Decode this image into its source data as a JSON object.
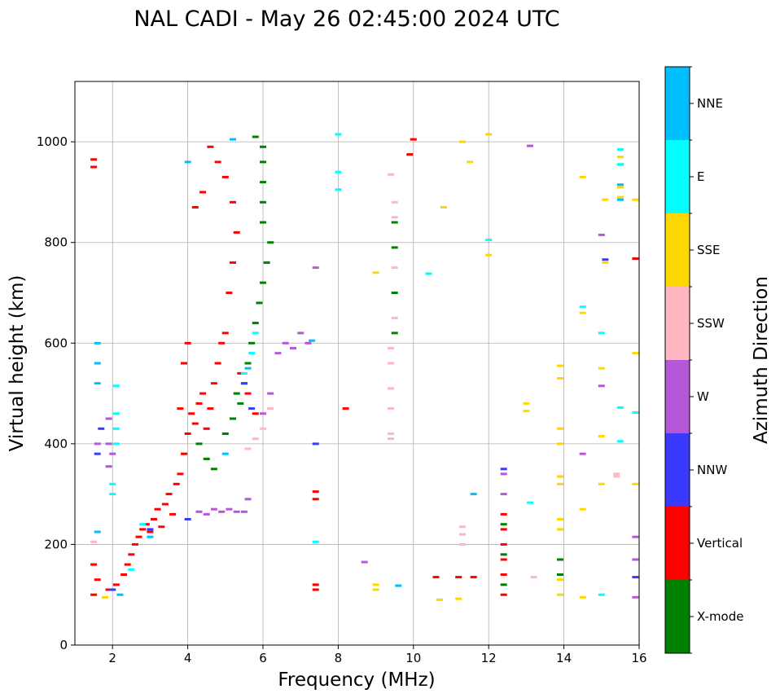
{
  "chart_data": {
    "type": "scatter",
    "title": "NAL CADI - May 26 02:45:00 2024 UTC",
    "xlabel": "Frequency (MHz)",
    "ylabel": "Virtual height (km)",
    "xlim": [
      1,
      16
    ],
    "ylim": [
      0,
      1120
    ],
    "grid": true,
    "x_ticks": [
      2,
      4,
      6,
      8,
      10,
      12,
      14,
      16
    ],
    "y_ticks": [
      0,
      200,
      400,
      600,
      800,
      1000
    ],
    "colorbar": {
      "label": "Azimuth Direction",
      "categories": [
        {
          "name": "X-mode",
          "color": "#008000"
        },
        {
          "name": "Vertical",
          "color": "#ff0000"
        },
        {
          "name": "NNW",
          "color": "#3a3aff"
        },
        {
          "name": "W",
          "color": "#b657d8"
        },
        {
          "name": "SSW",
          "color": "#ffb6c1"
        },
        {
          "name": "SSE",
          "color": "#ffd700"
        },
        {
          "name": "E",
          "color": "#00ffff"
        },
        {
          "name": "NNE",
          "color": "#00bfff"
        }
      ]
    },
    "series": [
      {
        "name": "Vertical",
        "color": "#ff0000",
        "points": [
          [
            1.5,
            100
          ],
          [
            1.6,
            130
          ],
          [
            1.5,
            160
          ],
          [
            1.5,
            950
          ],
          [
            1.5,
            965
          ],
          [
            1.9,
            110
          ],
          [
            2.1,
            120
          ],
          [
            2.3,
            140
          ],
          [
            2.4,
            160
          ],
          [
            2.5,
            180
          ],
          [
            2.6,
            200
          ],
          [
            2.7,
            215
          ],
          [
            2.8,
            230
          ],
          [
            2.9,
            240
          ],
          [
            3.0,
            225
          ],
          [
            3.1,
            250
          ],
          [
            3.2,
            270
          ],
          [
            3.3,
            235
          ],
          [
            3.4,
            280
          ],
          [
            3.5,
            300
          ],
          [
            3.6,
            260
          ],
          [
            3.7,
            320
          ],
          [
            3.8,
            340
          ],
          [
            3.9,
            380
          ],
          [
            4.0,
            420
          ],
          [
            4.1,
            460
          ],
          [
            4.2,
            440
          ],
          [
            4.3,
            480
          ],
          [
            4.4,
            500
          ],
          [
            4.5,
            430
          ],
          [
            4.6,
            470
          ],
          [
            4.7,
            520
          ],
          [
            4.8,
            560
          ],
          [
            4.9,
            600
          ],
          [
            5.0,
            620
          ],
          [
            5.1,
            700
          ],
          [
            5.2,
            760
          ],
          [
            5.3,
            820
          ],
          [
            5.2,
            880
          ],
          [
            5.0,
            930
          ],
          [
            4.8,
            960
          ],
          [
            4.6,
            990
          ],
          [
            4.4,
            900
          ],
          [
            4.2,
            870
          ],
          [
            4.0,
            600
          ],
          [
            3.9,
            560
          ],
          [
            3.8,
            470
          ],
          [
            5.4,
            540
          ],
          [
            5.6,
            500
          ],
          [
            5.8,
            460
          ],
          [
            7.4,
            110
          ],
          [
            7.4,
            120
          ],
          [
            7.4,
            290
          ],
          [
            7.4,
            305
          ],
          [
            8.2,
            470
          ],
          [
            9.9,
            975
          ],
          [
            10.0,
            1005
          ],
          [
            10.6,
            135
          ],
          [
            11.2,
            135
          ],
          [
            11.6,
            135
          ],
          [
            12.4,
            100
          ],
          [
            12.4,
            140
          ],
          [
            12.4,
            170
          ],
          [
            12.4,
            200
          ],
          [
            12.4,
            230
          ],
          [
            12.4,
            260
          ],
          [
            15.9,
            768
          ]
        ]
      },
      {
        "name": "X-mode",
        "color": "#008000",
        "points": [
          [
            4.3,
            400
          ],
          [
            4.5,
            370
          ],
          [
            4.7,
            350
          ],
          [
            5.0,
            420
          ],
          [
            5.2,
            450
          ],
          [
            5.4,
            480
          ],
          [
            5.5,
            520
          ],
          [
            5.6,
            560
          ],
          [
            5.7,
            600
          ],
          [
            5.8,
            640
          ],
          [
            5.9,
            680
          ],
          [
            6.0,
            720
          ],
          [
            6.1,
            760
          ],
          [
            6.2,
            800
          ],
          [
            6.0,
            840
          ],
          [
            6.0,
            880
          ],
          [
            6.0,
            920
          ],
          [
            6.0,
            960
          ],
          [
            6.0,
            990
          ],
          [
            5.8,
            1010
          ],
          [
            5.3,
            500
          ],
          [
            9.5,
            620
          ],
          [
            9.5,
            700
          ],
          [
            9.5,
            790
          ],
          [
            9.5,
            840
          ],
          [
            12.4,
            120
          ],
          [
            12.4,
            180
          ],
          [
            12.4,
            240
          ],
          [
            13.9,
            140
          ],
          [
            13.9,
            170
          ],
          [
            15.5,
            955
          ]
        ]
      },
      {
        "name": "NNW",
        "color": "#3a3aff",
        "points": [
          [
            1.6,
            380
          ],
          [
            1.7,
            430
          ],
          [
            2.0,
            110
          ],
          [
            3.0,
            230
          ],
          [
            4.0,
            250
          ],
          [
            5.5,
            520
          ],
          [
            5.7,
            470
          ],
          [
            7.4,
            400
          ],
          [
            12.4,
            350
          ],
          [
            15.1,
            766
          ],
          [
            15.9,
            135
          ]
        ]
      },
      {
        "name": "W",
        "color": "#b657d8",
        "points": [
          [
            1.6,
            400
          ],
          [
            1.9,
            355
          ],
          [
            1.9,
            400
          ],
          [
            1.9,
            450
          ],
          [
            2.0,
            380
          ],
          [
            4.3,
            265
          ],
          [
            4.5,
            260
          ],
          [
            4.7,
            270
          ],
          [
            4.9,
            265
          ],
          [
            5.1,
            270
          ],
          [
            5.3,
            265
          ],
          [
            5.5,
            265
          ],
          [
            5.6,
            290
          ],
          [
            6.0,
            460
          ],
          [
            6.2,
            500
          ],
          [
            6.4,
            580
          ],
          [
            6.6,
            600
          ],
          [
            6.8,
            590
          ],
          [
            7.0,
            620
          ],
          [
            7.2,
            600
          ],
          [
            7.4,
            750
          ],
          [
            8.7,
            165
          ],
          [
            12.4,
            300
          ],
          [
            12.4,
            340
          ],
          [
            13.1,
            992
          ],
          [
            14.5,
            380
          ],
          [
            15.0,
            815
          ],
          [
            15.0,
            515
          ],
          [
            15.9,
            215
          ],
          [
            15.9,
            170
          ],
          [
            15.9,
            95
          ]
        ]
      },
      {
        "name": "SSW",
        "color": "#ffb6c1",
        "points": [
          [
            1.5,
            205
          ],
          [
            5.6,
            390
          ],
          [
            5.8,
            410
          ],
          [
            6.0,
            430
          ],
          [
            6.2,
            470
          ],
          [
            9.4,
            410
          ],
          [
            9.4,
            420
          ],
          [
            9.4,
            470
          ],
          [
            9.4,
            510
          ],
          [
            9.4,
            560
          ],
          [
            9.4,
            590
          ],
          [
            9.5,
            650
          ],
          [
            9.5,
            750
          ],
          [
            9.5,
            850
          ],
          [
            9.5,
            880
          ],
          [
            9.4,
            935
          ],
          [
            11.3,
            200
          ],
          [
            11.3,
            220
          ],
          [
            11.3,
            235
          ],
          [
            13.2,
            135
          ],
          [
            15.4,
            335
          ],
          [
            15.4,
            340
          ]
        ]
      },
      {
        "name": "SSE",
        "color": "#ffd700",
        "points": [
          [
            1.8,
            95
          ],
          [
            9.0,
            110
          ],
          [
            9.0,
            120
          ],
          [
            9.0,
            740
          ],
          [
            10.7,
            90
          ],
          [
            10.8,
            870
          ],
          [
            11.2,
            92
          ],
          [
            11.3,
            1000
          ],
          [
            11.5,
            960
          ],
          [
            12.0,
            775
          ],
          [
            12.0,
            1015
          ],
          [
            13.0,
            465
          ],
          [
            13.0,
            480
          ],
          [
            13.9,
            100
          ],
          [
            13.9,
            130
          ],
          [
            13.9,
            230
          ],
          [
            13.9,
            250
          ],
          [
            13.9,
            320
          ],
          [
            13.9,
            335
          ],
          [
            13.9,
            400
          ],
          [
            13.9,
            430
          ],
          [
            13.9,
            530
          ],
          [
            13.9,
            555
          ],
          [
            14.5,
            95
          ],
          [
            14.5,
            270
          ],
          [
            14.5,
            660
          ],
          [
            14.5,
            930
          ],
          [
            15.0,
            320
          ],
          [
            15.0,
            415
          ],
          [
            15.0,
            550
          ],
          [
            15.1,
            760
          ],
          [
            15.1,
            885
          ],
          [
            15.5,
            890
          ],
          [
            15.5,
            910
          ],
          [
            15.5,
            970
          ],
          [
            15.9,
            320
          ],
          [
            15.9,
            580
          ],
          [
            15.9,
            885
          ]
        ]
      },
      {
        "name": "E",
        "color": "#00ffff",
        "points": [
          [
            2.0,
            300
          ],
          [
            2.0,
            320
          ],
          [
            2.1,
            400
          ],
          [
            2.1,
            430
          ],
          [
            2.1,
            460
          ],
          [
            2.1,
            515
          ],
          [
            2.5,
            150
          ],
          [
            2.8,
            240
          ],
          [
            5.5,
            540
          ],
          [
            5.7,
            580
          ],
          [
            5.8,
            620
          ],
          [
            7.4,
            205
          ],
          [
            8.0,
            905
          ],
          [
            8.0,
            940
          ],
          [
            8.0,
            1015
          ],
          [
            10.4,
            738
          ],
          [
            12.0,
            805
          ],
          [
            13.1,
            283
          ],
          [
            14.5,
            672
          ],
          [
            15.0,
            100
          ],
          [
            15.0,
            620
          ],
          [
            15.5,
            405
          ],
          [
            15.5,
            472
          ],
          [
            15.5,
            955
          ],
          [
            15.5,
            985
          ],
          [
            15.9,
            462
          ]
        ]
      },
      {
        "name": "NNE",
        "color": "#00bfff",
        "points": [
          [
            1.6,
            225
          ],
          [
            1.6,
            520
          ],
          [
            1.6,
            560
          ],
          [
            1.6,
            600
          ],
          [
            2.2,
            100
          ],
          [
            3.0,
            215
          ],
          [
            4.0,
            960
          ],
          [
            5.0,
            380
          ],
          [
            5.2,
            1005
          ],
          [
            5.6,
            550
          ],
          [
            7.3,
            605
          ],
          [
            9.6,
            118
          ],
          [
            11.6,
            300
          ],
          [
            15.5,
            885
          ],
          [
            15.5,
            915
          ]
        ]
      }
    ]
  }
}
